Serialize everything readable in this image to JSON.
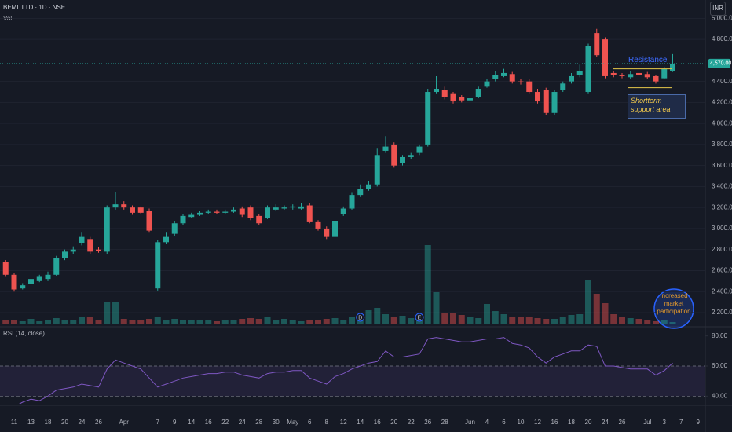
{
  "chart_data": {
    "type": "candlestick",
    "symbol": "BEML LTD · 1D · NSE",
    "currency": "INR",
    "volume_label": "Vol",
    "rsi_title": "RSI (14, close)",
    "categories": [
      null,
      "11",
      null,
      "13",
      null,
      "18",
      null,
      "20",
      null,
      "24",
      null,
      "26",
      null,
      null,
      "Apr",
      null,
      null,
      null,
      "7",
      null,
      "9",
      null,
      "14",
      null,
      "16",
      null,
      "22",
      null,
      "24",
      null,
      "28",
      null,
      "30",
      null,
      "May",
      null,
      "6",
      null,
      "8",
      null,
      "12",
      null,
      "14",
      null,
      "16",
      null,
      "20",
      null,
      "22",
      null,
      "26",
      null,
      "28",
      null,
      null,
      "Jun",
      null,
      "4",
      null,
      "6",
      null,
      "10",
      null,
      "12",
      null,
      "16",
      null,
      "18",
      null,
      "20",
      null,
      "24",
      null,
      "26",
      null,
      null,
      "Jul",
      null,
      "3",
      null,
      "7",
      null,
      "9"
    ],
    "open": [
      2680,
      2560,
      2430,
      2470,
      2500,
      2520,
      2560,
      2720,
      2780,
      2860,
      2900,
      2800,
      2780,
      3200,
      3230,
      3200,
      3200,
      3170,
      2430,
      2870,
      2950,
      3050,
      3110,
      3130,
      3150,
      3160,
      3150,
      3160,
      3190,
      3200,
      3120,
      3100,
      3180,
      3190,
      3200,
      3190,
      3220,
      3060,
      3000,
      2920,
      3140,
      3190,
      3320,
      3380,
      3420,
      3740,
      3800,
      3620,
      3680,
      3720,
      3800,
      4300,
      4320,
      4280,
      4250,
      4220,
      4250,
      4350,
      4420,
      4450,
      4470,
      4400,
      4400,
      4300,
      4320,
      4100,
      4320,
      4400,
      4460,
      4300,
      4860,
      4800,
      4480,
      4460,
      4440,
      4480,
      4470,
      4450,
      4430,
      4500,
      null,
      null,
      null
    ],
    "high": [
      2700,
      2580,
      2480,
      2540,
      2560,
      2590,
      2740,
      2800,
      2830,
      2960,
      2920,
      2820,
      3220,
      3350,
      3260,
      3220,
      3210,
      3190,
      2890,
      2960,
      3070,
      3140,
      3150,
      3170,
      3180,
      3180,
      3180,
      3200,
      3210,
      3220,
      3140,
      3220,
      3230,
      3220,
      3230,
      3240,
      3240,
      3080,
      3020,
      3090,
      3210,
      3340,
      3420,
      3450,
      3760,
      3880,
      3820,
      3700,
      3720,
      3800,
      4330,
      4450,
      4350,
      4300,
      4270,
      4260,
      4350,
      4420,
      4500,
      4520,
      4490,
      4420,
      4420,
      4330,
      4340,
      4320,
      4400,
      4480,
      4560,
      4760,
      4900,
      4820,
      4500,
      4480,
      4500,
      4500,
      4490,
      4460,
      4540,
      4660,
      null,
      null,
      null
    ],
    "low": [
      2540,
      2400,
      2420,
      2460,
      2490,
      2500,
      2550,
      2700,
      2760,
      2840,
      2760,
      2770,
      2760,
      3180,
      3180,
      3130,
      3140,
      2960,
      2410,
      2850,
      2930,
      3030,
      3100,
      3120,
      3140,
      3140,
      3140,
      3150,
      3110,
      3080,
      3030,
      3090,
      3170,
      3180,
      3180,
      3180,
      3050,
      2980,
      2900,
      2900,
      3120,
      3180,
      3300,
      3360,
      3400,
      3720,
      3580,
      3600,
      3660,
      3700,
      3780,
      4280,
      4230,
      4190,
      4200,
      4200,
      4240,
      4340,
      4400,
      4440,
      4380,
      4370,
      4280,
      4190,
      4080,
      4080,
      4300,
      4380,
      4440,
      4280,
      4630,
      4430,
      4440,
      4430,
      4420,
      4440,
      4420,
      4380,
      4420,
      4490,
      null,
      null,
      null
    ],
    "close": [
      2560,
      2420,
      2460,
      2520,
      2540,
      2560,
      2720,
      2780,
      2800,
      2920,
      2780,
      2790,
      3200,
      3230,
      3200,
      3150,
      3150,
      2980,
      2870,
      2920,
      3050,
      3120,
      3130,
      3150,
      3160,
      3150,
      3160,
      3180,
      3130,
      3100,
      3050,
      3200,
      3200,
      3200,
      3210,
      3210,
      3060,
      3000,
      2920,
      3070,
      3190,
      3320,
      3380,
      3420,
      3700,
      3780,
      3600,
      3680,
      3700,
      3780,
      4300,
      4330,
      4250,
      4210,
      4220,
      4240,
      4330,
      4400,
      4460,
      4480,
      4400,
      4390,
      4300,
      4210,
      4100,
      4300,
      4380,
      4450,
      4500,
      4740,
      4650,
      4450,
      4460,
      4450,
      4470,
      4460,
      4440,
      4400,
      4520,
      4570,
      null,
      null,
      null
    ],
    "volume": [
      5,
      4,
      3,
      6,
      3,
      4,
      7,
      5,
      5,
      8,
      9,
      4,
      27,
      27,
      6,
      4,
      4,
      6,
      8,
      5,
      6,
      5,
      4,
      4,
      4,
      3,
      4,
      5,
      6,
      7,
      6,
      8,
      5,
      6,
      5,
      3,
      5,
      5,
      6,
      7,
      5,
      9,
      12,
      17,
      20,
      12,
      8,
      10,
      7,
      9,
      100,
      40,
      14,
      13,
      11,
      8,
      7,
      25,
      16,
      12,
      9,
      8,
      8,
      7,
      6,
      6,
      9,
      11,
      12,
      55,
      38,
      26,
      12,
      9,
      7,
      6,
      5,
      3,
      4,
      2,
      null,
      null,
      null
    ],
    "rsi": [
      34,
      33,
      36,
      38,
      37,
      40,
      44,
      45,
      46,
      48,
      47,
      46,
      58,
      64,
      62,
      60,
      58,
      52,
      46,
      48,
      50,
      52,
      53,
      54,
      55,
      55,
      56,
      56,
      54,
      53,
      52,
      55,
      56,
      56,
      57,
      57,
      52,
      50,
      48,
      53,
      55,
      58,
      60,
      62,
      63,
      70,
      66,
      66,
      67,
      68,
      78,
      79,
      78,
      77,
      76,
      76,
      77,
      78,
      78,
      79,
      75,
      74,
      72,
      66,
      62,
      66,
      68,
      70,
      70,
      74,
      73,
      60,
      60,
      59,
      58,
      58,
      58,
      54,
      57,
      62,
      null,
      null,
      null
    ],
    "up_color": "#26a69a",
    "down_color": "#ef5350",
    "rsi_color": "#7e57c2",
    "ylim": [
      2095,
      5100
    ],
    "yticks": [
      {
        "value": 2200,
        "label": "2,200.00"
      },
      {
        "value": 2400,
        "label": "2,400.00"
      },
      {
        "value": 2600,
        "label": "2,600.00"
      },
      {
        "value": 2800,
        "label": "2,800.00"
      },
      {
        "value": 3000,
        "label": "3,000.00"
      },
      {
        "value": 3200,
        "label": "3,200.00"
      },
      {
        "value": 3400,
        "label": "3,400.00"
      },
      {
        "value": 3600,
        "label": "3,600.00"
      },
      {
        "value": 3800,
        "label": "3,800.00"
      },
      {
        "value": 4000,
        "label": "4,000.00"
      },
      {
        "value": 4200,
        "label": "4,200.00"
      },
      {
        "value": 4400,
        "label": "4,400.00"
      },
      {
        "value": 4800,
        "label": "4,800.00"
      },
      {
        "value": 5000,
        "label": "5,000.00"
      }
    ],
    "rsi_ylim": [
      36,
      84
    ],
    "rsi_yticks": [
      {
        "value": 80,
        "label": "80.00"
      },
      {
        "value": 60,
        "label": "60.00"
      },
      {
        "value": 40,
        "label": "40.00"
      }
    ],
    "rsi_band": [
      40,
      60
    ],
    "last_price": {
      "value": 4570,
      "label": "4,570.00"
    },
    "events": [
      {
        "label": "D",
        "index": 42
      },
      {
        "label": "E",
        "index": 49
      }
    ],
    "annotations": {
      "resistance": {
        "text": "Resistance",
        "level": 4520
      },
      "support": {
        "text": "Shortterm support area",
        "level": 4340
      },
      "participation": {
        "text": "Increased market participation"
      }
    },
    "grid": true
  }
}
